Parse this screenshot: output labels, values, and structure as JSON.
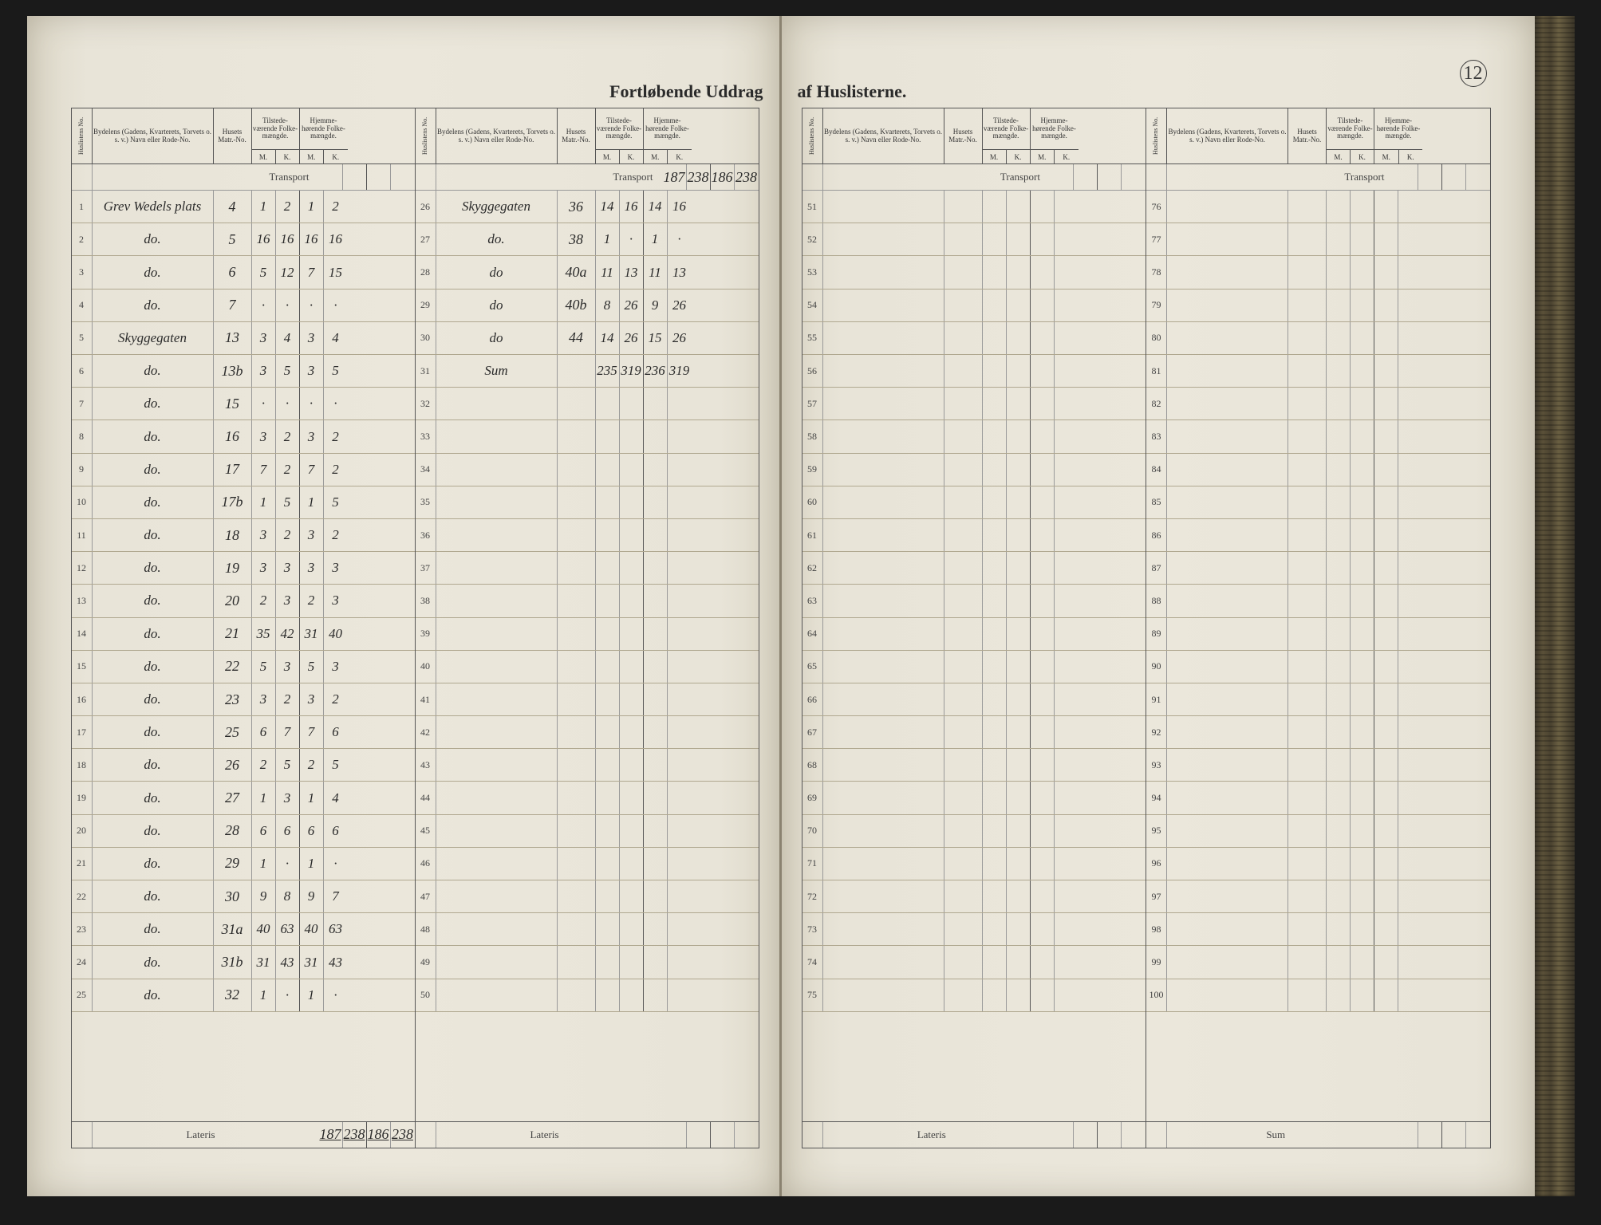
{
  "meta": {
    "title_left": "Fortløbende Uddrag",
    "title_right": "af Huslisterne.",
    "page_number": "12",
    "transport_label": "Transport",
    "lateris_label": "Lateris",
    "sum_label": "Sum"
  },
  "headers": {
    "no": "Huslistens No.",
    "bydelens": "Bydelens (Gadens, Kvarterets, Torvets o. s. v.) Navn eller Rode-No.",
    "husets": "Husets Matr.-No.",
    "tilstede": "Tilstede-værende Folke-mængde.",
    "hjemme": "Hjemme-hørende Folke-mængde.",
    "m": "M.",
    "k": "K."
  },
  "blocks": [
    {
      "transport_vals": [
        "",
        "",
        "",
        ""
      ],
      "lateris_vals": [
        "187",
        "238",
        "186",
        "238"
      ],
      "rows": [
        {
          "n": "1",
          "byd": "Grev Wedels plats",
          "matr": "4",
          "v": [
            "1",
            "2",
            "1",
            "2"
          ]
        },
        {
          "n": "2",
          "byd": "do.",
          "matr": "5",
          "v": [
            "16",
            "16",
            "16",
            "16"
          ]
        },
        {
          "n": "3",
          "byd": "do.",
          "matr": "6",
          "v": [
            "5",
            "12",
            "7",
            "15"
          ]
        },
        {
          "n": "4",
          "byd": "do.",
          "matr": "7",
          "v": [
            "·",
            "·",
            "·",
            "·"
          ]
        },
        {
          "n": "5",
          "byd": "Skyggegaten",
          "matr": "13",
          "v": [
            "3",
            "4",
            "3",
            "4"
          ]
        },
        {
          "n": "6",
          "byd": "do.",
          "matr": "13b",
          "v": [
            "3",
            "5",
            "3",
            "5"
          ]
        },
        {
          "n": "7",
          "byd": "do.",
          "matr": "15",
          "v": [
            "·",
            "·",
            "·",
            "·"
          ]
        },
        {
          "n": "8",
          "byd": "do.",
          "matr": "16",
          "v": [
            "3",
            "2",
            "3",
            "2"
          ]
        },
        {
          "n": "9",
          "byd": "do.",
          "matr": "17",
          "v": [
            "7",
            "2",
            "7",
            "2"
          ]
        },
        {
          "n": "10",
          "byd": "do.",
          "matr": "17b",
          "v": [
            "1",
            "5",
            "1",
            "5"
          ]
        },
        {
          "n": "11",
          "byd": "do.",
          "matr": "18",
          "v": [
            "3",
            "2",
            "3",
            "2"
          ]
        },
        {
          "n": "12",
          "byd": "do.",
          "matr": "19",
          "v": [
            "3",
            "3",
            "3",
            "3"
          ]
        },
        {
          "n": "13",
          "byd": "do.",
          "matr": "20",
          "v": [
            "2",
            "3",
            "2",
            "3"
          ]
        },
        {
          "n": "14",
          "byd": "do.",
          "matr": "21",
          "v": [
            "35",
            "42",
            "31",
            "40"
          ]
        },
        {
          "n": "15",
          "byd": "do.",
          "matr": "22",
          "v": [
            "5",
            "3",
            "5",
            "3"
          ]
        },
        {
          "n": "16",
          "byd": "do.",
          "matr": "23",
          "v": [
            "3",
            "2",
            "3",
            "2"
          ]
        },
        {
          "n": "17",
          "byd": "do.",
          "matr": "25",
          "v": [
            "6",
            "7",
            "7",
            "6"
          ]
        },
        {
          "n": "18",
          "byd": "do.",
          "matr": "26",
          "v": [
            "2",
            "5",
            "2",
            "5"
          ]
        },
        {
          "n": "19",
          "byd": "do.",
          "matr": "27",
          "v": [
            "1",
            "3",
            "1",
            "4"
          ]
        },
        {
          "n": "20",
          "byd": "do.",
          "matr": "28",
          "v": [
            "6",
            "6",
            "6",
            "6"
          ]
        },
        {
          "n": "21",
          "byd": "do.",
          "matr": "29",
          "v": [
            "1",
            "·",
            "1",
            "·"
          ]
        },
        {
          "n": "22",
          "byd": "do.",
          "matr": "30",
          "v": [
            "9",
            "8",
            "9",
            "7"
          ]
        },
        {
          "n": "23",
          "byd": "do.",
          "matr": "31a",
          "v": [
            "40",
            "63",
            "40",
            "63"
          ]
        },
        {
          "n": "24",
          "byd": "do.",
          "matr": "31b",
          "v": [
            "31",
            "43",
            "31",
            "43"
          ]
        },
        {
          "n": "25",
          "byd": "do.",
          "matr": "32",
          "v": [
            "1",
            "·",
            "1",
            "·"
          ]
        }
      ]
    },
    {
      "transport_vals": [
        "187",
        "238",
        "186",
        "238"
      ],
      "lateris_vals": [
        "",
        "",
        "",
        ""
      ],
      "rows": [
        {
          "n": "26",
          "byd": "Skyggegaten",
          "matr": "36",
          "v": [
            "14",
            "16",
            "14",
            "16"
          ]
        },
        {
          "n": "27",
          "byd": "do.",
          "matr": "38",
          "v": [
            "1",
            "·",
            "1",
            "·"
          ]
        },
        {
          "n": "28",
          "byd": "do",
          "matr": "40a",
          "v": [
            "11",
            "13",
            "11",
            "13"
          ]
        },
        {
          "n": "29",
          "byd": "do",
          "matr": "40b",
          "v": [
            "8",
            "26",
            "9",
            "26"
          ]
        },
        {
          "n": "30",
          "byd": "do",
          "matr": "44",
          "v": [
            "14",
            "26",
            "15",
            "26"
          ]
        },
        {
          "n": "31",
          "byd": "Sum",
          "matr": "",
          "v": [
            "235",
            "319",
            "236",
            "319"
          ]
        },
        {
          "n": "32",
          "byd": "",
          "matr": "",
          "v": [
            "",
            "",
            "",
            ""
          ]
        },
        {
          "n": "33",
          "byd": "",
          "matr": "",
          "v": [
            "",
            "",
            "",
            ""
          ]
        },
        {
          "n": "34",
          "byd": "",
          "matr": "",
          "v": [
            "",
            "",
            "",
            ""
          ]
        },
        {
          "n": "35",
          "byd": "",
          "matr": "",
          "v": [
            "",
            "",
            "",
            ""
          ]
        },
        {
          "n": "36",
          "byd": "",
          "matr": "",
          "v": [
            "",
            "",
            "",
            ""
          ]
        },
        {
          "n": "37",
          "byd": "",
          "matr": "",
          "v": [
            "",
            "",
            "",
            ""
          ]
        },
        {
          "n": "38",
          "byd": "",
          "matr": "",
          "v": [
            "",
            "",
            "",
            ""
          ]
        },
        {
          "n": "39",
          "byd": "",
          "matr": "",
          "v": [
            "",
            "",
            "",
            ""
          ]
        },
        {
          "n": "40",
          "byd": "",
          "matr": "",
          "v": [
            "",
            "",
            "",
            ""
          ]
        },
        {
          "n": "41",
          "byd": "",
          "matr": "",
          "v": [
            "",
            "",
            "",
            ""
          ]
        },
        {
          "n": "42",
          "byd": "",
          "matr": "",
          "v": [
            "",
            "",
            "",
            ""
          ]
        },
        {
          "n": "43",
          "byd": "",
          "matr": "",
          "v": [
            "",
            "",
            "",
            ""
          ]
        },
        {
          "n": "44",
          "byd": "",
          "matr": "",
          "v": [
            "",
            "",
            "",
            ""
          ]
        },
        {
          "n": "45",
          "byd": "",
          "matr": "",
          "v": [
            "",
            "",
            "",
            ""
          ]
        },
        {
          "n": "46",
          "byd": "",
          "matr": "",
          "v": [
            "",
            "",
            "",
            ""
          ]
        },
        {
          "n": "47",
          "byd": "",
          "matr": "",
          "v": [
            "",
            "",
            "",
            ""
          ]
        },
        {
          "n": "48",
          "byd": "",
          "matr": "",
          "v": [
            "",
            "",
            "",
            ""
          ]
        },
        {
          "n": "49",
          "byd": "",
          "matr": "",
          "v": [
            "",
            "",
            "",
            ""
          ]
        },
        {
          "n": "50",
          "byd": "",
          "matr": "",
          "v": [
            "",
            "",
            "",
            ""
          ]
        }
      ]
    },
    {
      "transport_vals": [
        "",
        "",
        "",
        ""
      ],
      "lateris_vals": [
        "",
        "",
        "",
        ""
      ],
      "rows": [
        {
          "n": "51"
        },
        {
          "n": "52"
        },
        {
          "n": "53"
        },
        {
          "n": "54"
        },
        {
          "n": "55"
        },
        {
          "n": "56"
        },
        {
          "n": "57"
        },
        {
          "n": "58"
        },
        {
          "n": "59"
        },
        {
          "n": "60"
        },
        {
          "n": "61"
        },
        {
          "n": "62"
        },
        {
          "n": "63"
        },
        {
          "n": "64"
        },
        {
          "n": "65"
        },
        {
          "n": "66"
        },
        {
          "n": "67"
        },
        {
          "n": "68"
        },
        {
          "n": "69"
        },
        {
          "n": "70"
        },
        {
          "n": "71"
        },
        {
          "n": "72"
        },
        {
          "n": "73"
        },
        {
          "n": "74"
        },
        {
          "n": "75"
        }
      ]
    },
    {
      "transport_vals": [
        "",
        "",
        "",
        ""
      ],
      "lateris_vals": [
        "",
        "",
        "",
        ""
      ],
      "last_label": "Sum",
      "rows": [
        {
          "n": "76"
        },
        {
          "n": "77"
        },
        {
          "n": "78"
        },
        {
          "n": "79"
        },
        {
          "n": "80"
        },
        {
          "n": "81"
        },
        {
          "n": "82"
        },
        {
          "n": "83"
        },
        {
          "n": "84"
        },
        {
          "n": "85"
        },
        {
          "n": "86"
        },
        {
          "n": "87"
        },
        {
          "n": "88"
        },
        {
          "n": "89"
        },
        {
          "n": "90"
        },
        {
          "n": "91"
        },
        {
          "n": "92"
        },
        {
          "n": "93"
        },
        {
          "n": "94"
        },
        {
          "n": "95"
        },
        {
          "n": "96"
        },
        {
          "n": "97"
        },
        {
          "n": "98"
        },
        {
          "n": "99"
        },
        {
          "n": "100"
        }
      ]
    }
  ],
  "colors": {
    "paper": "#e8e4d8",
    "edge": "#3a3528",
    "rule": "#999",
    "rule_heavy": "#555",
    "ink": "#2a2a2a",
    "print": "#333"
  }
}
